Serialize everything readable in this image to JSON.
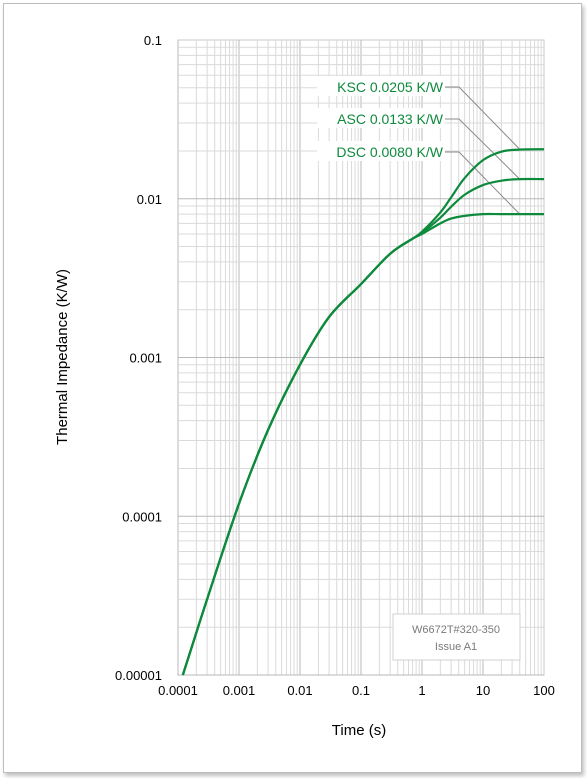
{
  "chart_data": {
    "type": "line",
    "xlabel": "Time (s)",
    "ylabel": "Thermal Impedance (K/W)",
    "xscale": "log",
    "yscale": "log",
    "xlim": [
      0.0001,
      100
    ],
    "ylim": [
      1e-05,
      0.1
    ],
    "xticks": [
      "0.0001",
      "0.001",
      "0.01",
      "0.1",
      "1",
      "10",
      "100"
    ],
    "yticks": [
      "0.00001",
      "0.0001",
      "0.001",
      "0.01",
      "0.1"
    ],
    "grid": true,
    "line_color": "#0e8a3c",
    "series": [
      {
        "name": "KSC 0.0205 K/W",
        "x": [
          0.00012,
          0.0003,
          0.001,
          0.003,
          0.01,
          0.03,
          0.1,
          0.3,
          0.7,
          1,
          2,
          3,
          5,
          10,
          20,
          40,
          100
        ],
        "y": [
          1e-05,
          3e-05,
          0.00012,
          0.00035,
          0.0009,
          0.0018,
          0.0029,
          0.0045,
          0.0056,
          0.0062,
          0.0082,
          0.0102,
          0.0135,
          0.0175,
          0.0198,
          0.0204,
          0.0205
        ]
      },
      {
        "name": "ASC 0.0133 K/W",
        "x": [
          0.00012,
          0.0003,
          0.001,
          0.003,
          0.01,
          0.03,
          0.1,
          0.3,
          0.7,
          1,
          2,
          3,
          5,
          10,
          20,
          40,
          100
        ],
        "y": [
          1e-05,
          3e-05,
          0.00012,
          0.00035,
          0.0009,
          0.0018,
          0.0029,
          0.0045,
          0.0056,
          0.0061,
          0.0076,
          0.0089,
          0.0106,
          0.0122,
          0.013,
          0.0133,
          0.0133
        ]
      },
      {
        "name": "DSC 0.0080 K/W",
        "x": [
          0.00012,
          0.0003,
          0.001,
          0.003,
          0.01,
          0.03,
          0.1,
          0.3,
          0.7,
          1,
          2,
          3,
          5,
          10,
          20,
          40,
          100
        ],
        "y": [
          1e-05,
          3e-05,
          0.00012,
          0.00035,
          0.0009,
          0.0018,
          0.0029,
          0.0045,
          0.0056,
          0.006,
          0.007,
          0.0075,
          0.0078,
          0.008,
          0.008,
          0.008,
          0.008
        ]
      }
    ],
    "annotations": [
      "KSC 0.0205 K/W",
      "ASC 0.0133 K/W",
      "DSC 0.0080 K/W"
    ]
  },
  "stamp": {
    "line1": "W6672T#320-350",
    "line2": "Issue A1"
  }
}
